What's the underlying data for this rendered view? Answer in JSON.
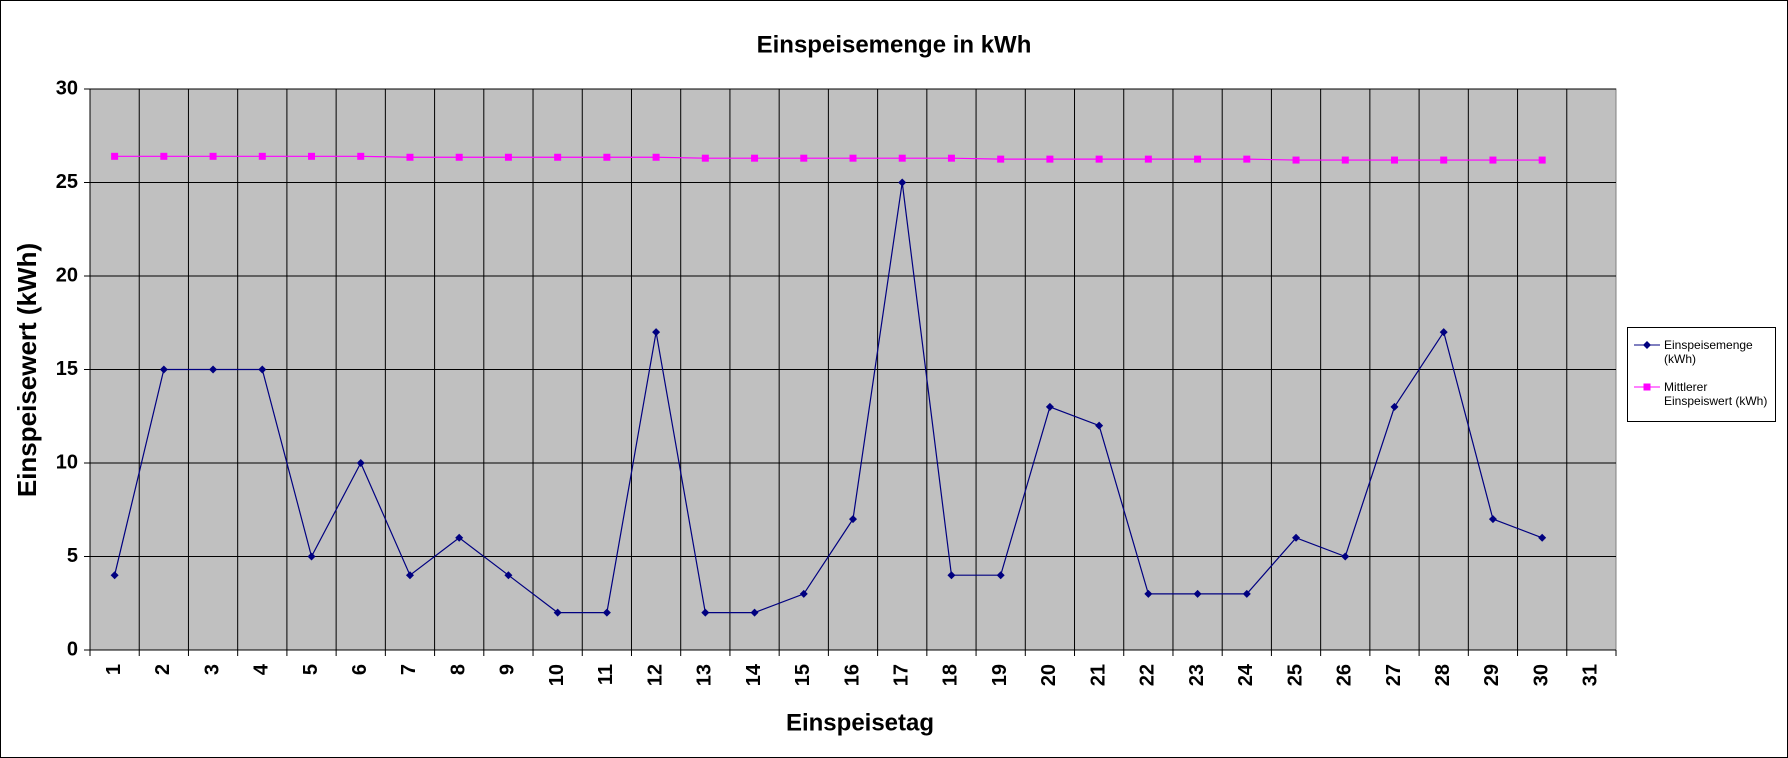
{
  "chart_data": {
    "type": "line",
    "title": "Einspeisemenge in kWh",
    "x_label": "Einspeisetag",
    "y_label": "Einspeisewert  (kWh)",
    "categories": [
      "1",
      "2",
      "3",
      "4",
      "5",
      "6",
      "7",
      "8",
      "9",
      "10",
      "11",
      "12",
      "13",
      "14",
      "15",
      "16",
      "17",
      "18",
      "19",
      "20",
      "21",
      "22",
      "23",
      "24",
      "25",
      "26",
      "27",
      "28",
      "29",
      "30",
      "31"
    ],
    "series": [
      {
        "name": "Einspeisemenge (kWh)",
        "color": "#000080",
        "marker": "diamond",
        "values": [
          4,
          15,
          15,
          15,
          5,
          10,
          4,
          6,
          4,
          2,
          2,
          17,
          2,
          2,
          3,
          7,
          25,
          4,
          4,
          13,
          12,
          3,
          3,
          3,
          6,
          5,
          13,
          17,
          7,
          6,
          null
        ]
      },
      {
        "name": "Mittlerer Einspeiswert (kWh)",
        "color": "#ff00ff",
        "marker": "square",
        "values": [
          26.4,
          26.4,
          26.4,
          26.4,
          26.4,
          26.4,
          26.35,
          26.35,
          26.35,
          26.35,
          26.35,
          26.35,
          26.3,
          26.3,
          26.3,
          26.3,
          26.3,
          26.3,
          26.25,
          26.25,
          26.25,
          26.25,
          26.25,
          26.25,
          26.2,
          26.2,
          26.2,
          26.2,
          26.2,
          26.2,
          null
        ]
      }
    ],
    "ylim": [
      0,
      30
    ],
    "yticks": [
      0,
      5,
      10,
      15,
      20,
      25,
      30
    ],
    "grid": true,
    "plot_background": "#c0c0c0",
    "legend": "right"
  }
}
